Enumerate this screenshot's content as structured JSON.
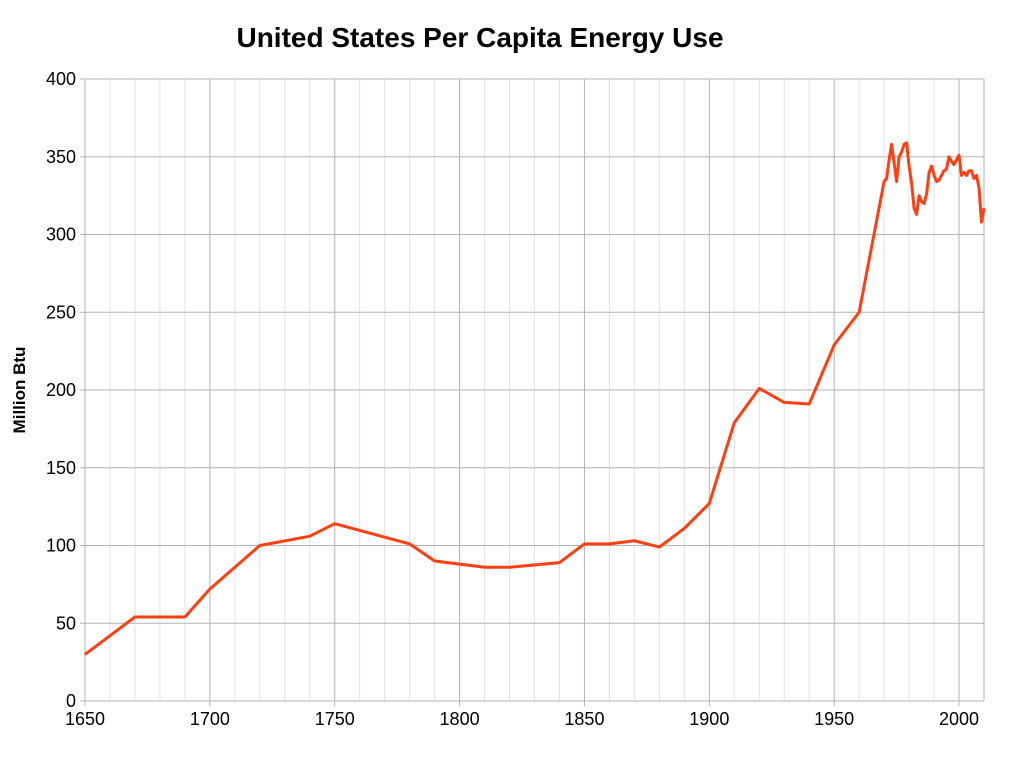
{
  "chart_data": {
    "type": "line",
    "title": "United States Per Capita Energy Use",
    "xlabel": "",
    "ylabel": "Million Btu",
    "xlim": [
      1650,
      2010
    ],
    "ylim": [
      0,
      400
    ],
    "x_ticks": [
      1650,
      1700,
      1750,
      1800,
      1850,
      1900,
      1950,
      2000
    ],
    "y_ticks": [
      0,
      50,
      100,
      150,
      200,
      250,
      300,
      350,
      400
    ],
    "grid": true,
    "line_color": "#ff3f12",
    "series": [
      {
        "x": [
          1650,
          1670,
          1690,
          1700,
          1720,
          1740,
          1750,
          1780,
          1790,
          1810,
          1820,
          1840,
          1850,
          1860,
          1870,
          1880,
          1890,
          1900,
          1910,
          1920,
          1930,
          1940,
          1950,
          1960,
          1970,
          1971,
          1972,
          1973,
          1974,
          1975,
          1976,
          1977,
          1978,
          1979,
          1980,
          1981,
          1982,
          1983,
          1984,
          1985,
          1986,
          1987,
          1988,
          1989,
          1990,
          1991,
          1992,
          1993,
          1994,
          1995,
          1996,
          1997,
          1998,
          1999,
          2000,
          2001,
          2002,
          2003,
          2004,
          2005,
          2006,
          2007,
          2008,
          2009,
          2010
        ],
        "y": [
          30,
          54,
          54,
          72,
          100,
          106,
          114,
          101,
          90,
          86,
          86,
          89,
          101,
          101,
          103,
          99,
          111,
          127,
          179,
          201,
          192,
          191,
          229,
          250,
          334,
          336,
          348,
          358,
          346,
          334,
          350,
          353,
          358,
          359,
          344,
          333,
          317,
          313,
          325,
          321,
          320,
          326,
          340,
          344,
          338,
          334,
          335,
          338,
          341,
          342,
          350,
          347,
          345,
          348,
          351,
          338,
          340,
          338,
          341,
          341,
          336,
          338,
          330,
          308,
          317
        ]
      }
    ]
  }
}
